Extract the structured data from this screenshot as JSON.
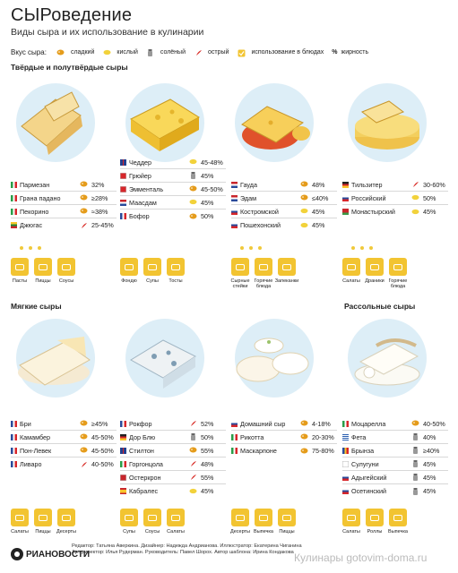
{
  "header": {
    "title": "СЫРоведение",
    "subtitle": "Виды сыра и их использование в кулинарии"
  },
  "legend": {
    "title": "Вкус сыра:",
    "items": [
      {
        "label": "сладкий",
        "icon": "sweet-icon"
      },
      {
        "label": "кислый",
        "icon": "sour-icon"
      },
      {
        "label": "солёный",
        "icon": "salty-icon"
      },
      {
        "label": "острый",
        "icon": "spicy-icon"
      },
      {
        "label": "использование в блюдах",
        "icon": "dish-usage-icon"
      },
      {
        "label": "жирность",
        "icon": "percent-icon",
        "symbol": "%"
      }
    ]
  },
  "sections": {
    "hard": "Твёрдые и полутвёрдые сыры",
    "soft": "Мягкие сыры",
    "brine": "Рассольные сыры"
  },
  "colors": {
    "accent": "#f2c431",
    "circle": "#ddeef7",
    "spicy": "#d9302b",
    "sweet": "#e59c1b"
  },
  "groups": [
    {
      "cheeses": [
        {
          "name": "Пармезан",
          "taste": "sweet",
          "fat": "32%",
          "flag": "it"
        },
        {
          "name": "Грана падано",
          "taste": "sweet",
          "fat": "≥28%",
          "flag": "it"
        },
        {
          "name": "Пекорино",
          "taste": "sweet",
          "fat": "≈38%",
          "flag": "it"
        },
        {
          "name": "Джюгас",
          "taste": "spicy",
          "fat": "25-45%",
          "flag": "lt"
        }
      ],
      "dishes": [
        "Пасты",
        "Пиццы",
        "Соусы"
      ]
    },
    {
      "cheeses": [
        {
          "name": "Чеддер",
          "taste": "sour",
          "fat": "45-48%",
          "flag": "gb"
        },
        {
          "name": "Грюйер",
          "taste": "salty",
          "fat": "45%",
          "flag": "ch"
        },
        {
          "name": "Эмменталь",
          "taste": "sweet",
          "fat": "45-50%",
          "flag": "ch"
        },
        {
          "name": "Маасдам",
          "taste": "sour",
          "fat": "45%",
          "flag": "nl"
        },
        {
          "name": "Бофор",
          "taste": "sweet",
          "fat": "50%",
          "flag": "fr"
        }
      ],
      "dishes": [
        "Фондю",
        "Супы",
        "Тосты"
      ]
    },
    {
      "cheeses": [
        {
          "name": "Гауда",
          "taste": "sweet",
          "fat": "48%",
          "flag": "nl"
        },
        {
          "name": "Эдам",
          "taste": "sweet",
          "fat": "≤40%",
          "flag": "nl"
        },
        {
          "name": "Костромской",
          "taste": "sour",
          "fat": "45%",
          "flag": "ru"
        },
        {
          "name": "Пошехонский",
          "taste": "sour",
          "fat": "45%",
          "flag": "ru"
        }
      ],
      "dishes": [
        "Сырные стейки",
        "Горячие блюда",
        "Запеканки"
      ]
    },
    {
      "cheeses": [
        {
          "name": "Тильзитер",
          "taste": "spicy",
          "fat": "30-60%",
          "flag": "de"
        },
        {
          "name": "Российский",
          "taste": "sour",
          "fat": "50%",
          "flag": "ru"
        },
        {
          "name": "Монастырский",
          "taste": "sour",
          "fat": "45%",
          "flag": "by"
        }
      ],
      "dishes": [
        "Салаты",
        "Драники",
        "Горячие блюда"
      ]
    },
    {
      "cheeses": [
        {
          "name": "Бри",
          "taste": "sweet",
          "fat": "≥45%",
          "flag": "fr"
        },
        {
          "name": "Камамбер",
          "taste": "sweet",
          "fat": "45-50%",
          "flag": "fr"
        },
        {
          "name": "Пон-Левек",
          "taste": "sweet",
          "fat": "45-50%",
          "flag": "fr"
        },
        {
          "name": "Ливаро",
          "taste": "spicy",
          "fat": "40-50%",
          "flag": "fr"
        }
      ],
      "dishes": [
        "Салаты",
        "Пиццы",
        "Десерты"
      ]
    },
    {
      "cheeses": [
        {
          "name": "Рокфор",
          "taste": "spicy",
          "fat": "52%",
          "flag": "fr"
        },
        {
          "name": "Дор Блю",
          "taste": "salty",
          "fat": "50%",
          "flag": "de"
        },
        {
          "name": "Стилтон",
          "taste": "sweet",
          "fat": "55%",
          "flag": "gb"
        },
        {
          "name": "Горгонцола",
          "taste": "spicy",
          "fat": "48%",
          "flag": "it"
        },
        {
          "name": "Остеркрон",
          "taste": "spicy",
          "fat": "55%",
          "flag": "dk"
        },
        {
          "name": "Кабралес",
          "taste": "sour",
          "fat": "45%",
          "flag": "es"
        }
      ],
      "dishes": [
        "Супы",
        "Соусы",
        "Салаты"
      ]
    },
    {
      "cheeses": [
        {
          "name": "Домашний сыр",
          "taste": "sweet",
          "fat": "4-18%",
          "flag": "ru"
        },
        {
          "name": "Рикотта",
          "taste": "sweet",
          "fat": "20-30%",
          "flag": "it"
        },
        {
          "name": "Маскарпоне",
          "taste": "sweet",
          "fat": "75-80%",
          "flag": "it"
        }
      ],
      "dishes": [
        "Десерты",
        "Выпечка",
        "Пиццы"
      ]
    },
    {
      "cheeses": [
        {
          "name": "Моцарелла",
          "taste": "sweet",
          "fat": "40-50%",
          "flag": "it"
        },
        {
          "name": "Фета",
          "taste": "salty",
          "fat": "40%",
          "flag": "gr"
        },
        {
          "name": "Брынза",
          "taste": "salty",
          "fat": "≥40%",
          "flag": "ro"
        },
        {
          "name": "Сулугуни",
          "taste": "salty",
          "fat": "45%",
          "flag": "ge"
        },
        {
          "name": "Адыгейский",
          "taste": "salty",
          "fat": "45%",
          "flag": "ru"
        },
        {
          "name": "Осетинский",
          "taste": "salty",
          "fat": "45%",
          "flag": "ru"
        }
      ],
      "dishes": [
        "Салаты",
        "Роллы",
        "Выпечка"
      ]
    }
  ],
  "footer": {
    "logo": "РИАНОВОСТИ",
    "credits_1": "Редактор: Татьяна Аверкина. Дизайнер: Надежда Андрианова. Иллюстратор: Екатерина Чиганина",
    "credits_2": "Арт-директор: Илья Рудерман. Руководитель: Павел Шорох. Автор шаблона: Ирина Кондакова",
    "watermark": "Кулинары gotovim-doma.ru"
  }
}
